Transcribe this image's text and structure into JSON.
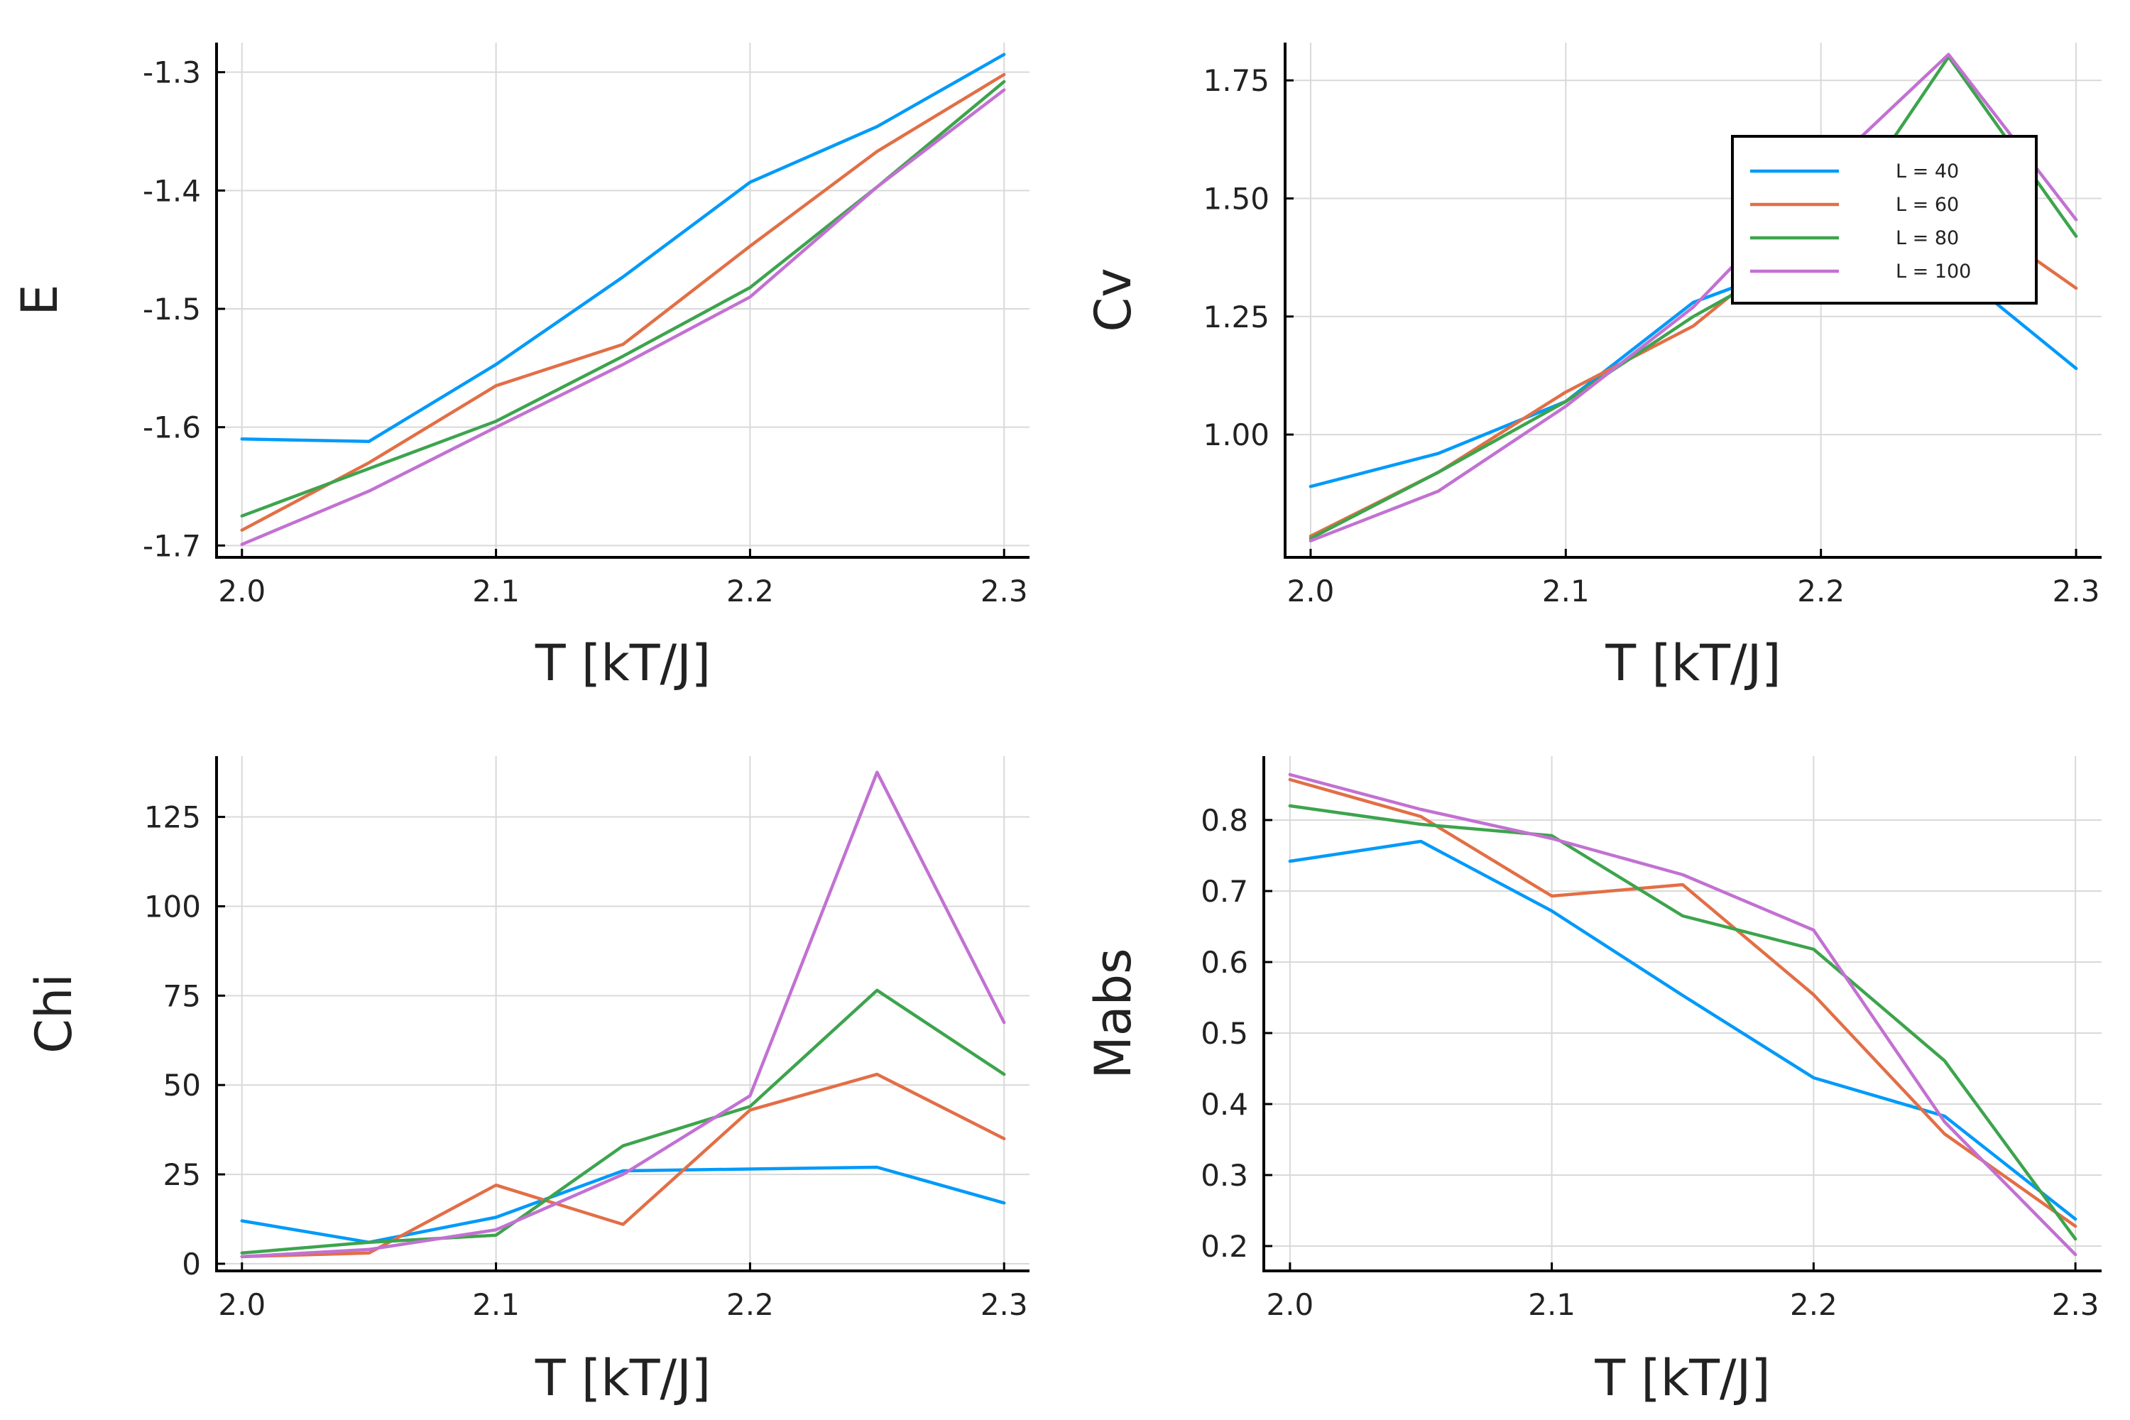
{
  "colors": {
    "L40": "#009af9",
    "L60": "#e26f46",
    "L80": "#3da44d",
    "L100": "#c271d2"
  },
  "legend": {
    "entries": [
      "L = 40",
      "L = 60",
      "L = 80",
      "L = 100"
    ]
  },
  "chart_data": [
    {
      "type": "line",
      "title": "",
      "xlabel": "T [kT/J]",
      "ylabel": "E",
      "xlim": [
        1.99,
        2.31
      ],
      "ylim": [
        -1.71,
        -1.275
      ],
      "xticks": [
        2.0,
        2.1,
        2.2,
        2.3
      ],
      "xtick_labels": [
        "2.0",
        "2.1",
        "2.2",
        "2.3"
      ],
      "yticks": [
        -1.7,
        -1.6,
        -1.5,
        -1.4,
        -1.3
      ],
      "ytick_labels": [
        "-1.7",
        "-1.6",
        "-1.5",
        "-1.4",
        "-1.3"
      ],
      "grid": true,
      "legend": false,
      "x": [
        2.0,
        2.05,
        2.1,
        2.15,
        2.2,
        2.25,
        2.3
      ],
      "series": [
        {
          "name": "L = 40",
          "values": [
            -1.61,
            -1.612,
            -1.547,
            -1.473,
            -1.393,
            -1.346,
            -1.285
          ]
        },
        {
          "name": "L = 60",
          "values": [
            -1.687,
            -1.63,
            -1.565,
            -1.53,
            -1.447,
            -1.367,
            -1.302
          ]
        },
        {
          "name": "L = 80",
          "values": [
            -1.675,
            -1.635,
            -1.595,
            -1.54,
            -1.482,
            -1.397,
            -1.308
          ]
        },
        {
          "name": "L = 100",
          "values": [
            -1.699,
            -1.654,
            -1.6,
            -1.547,
            -1.49,
            -1.397,
            -1.315
          ]
        }
      ]
    },
    {
      "type": "line",
      "title": "",
      "xlabel": "T [kT/J]",
      "ylabel": "Cv",
      "xlim": [
        1.99,
        2.31
      ],
      "ylim": [
        0.74,
        1.83
      ],
      "xticks": [
        2.0,
        2.1,
        2.2,
        2.3
      ],
      "xtick_labels": [
        "2.0",
        "2.1",
        "2.2",
        "2.3"
      ],
      "yticks": [
        1.0,
        1.25,
        1.5,
        1.75
      ],
      "ytick_labels": [
        "1.00",
        "1.25",
        "1.50",
        "1.75"
      ],
      "grid": true,
      "legend": true,
      "legend_position": "top-right",
      "x": [
        2.0,
        2.05,
        2.1,
        2.15,
        2.2,
        2.25,
        2.3
      ],
      "series": [
        {
          "name": "L = 40",
          "values": [
            0.89,
            0.96,
            1.07,
            1.28,
            1.38,
            1.36,
            1.14
          ]
        },
        {
          "name": "L = 60",
          "values": [
            0.785,
            0.92,
            1.09,
            1.23,
            1.45,
            1.5,
            1.31
          ]
        },
        {
          "name": "L = 80",
          "values": [
            0.78,
            0.92,
            1.07,
            1.25,
            1.4,
            1.8,
            1.42
          ]
        },
        {
          "name": "L = 100",
          "values": [
            0.775,
            0.88,
            1.06,
            1.27,
            1.55,
            1.805,
            1.455
          ]
        }
      ]
    },
    {
      "type": "line",
      "title": "",
      "xlabel": "T [kT/J]",
      "ylabel": "Chi",
      "xlim": [
        1.99,
        2.31
      ],
      "ylim": [
        -2,
        142
      ],
      "xticks": [
        2.0,
        2.1,
        2.2,
        2.3
      ],
      "xtick_labels": [
        "2.0",
        "2.1",
        "2.2",
        "2.3"
      ],
      "yticks": [
        0,
        25,
        50,
        75,
        100,
        125
      ],
      "ytick_labels": [
        "0",
        "25",
        "50",
        "75",
        "100",
        "125"
      ],
      "grid": true,
      "legend": false,
      "x": [
        2.0,
        2.05,
        2.1,
        2.15,
        2.2,
        2.25,
        2.3
      ],
      "series": [
        {
          "name": "L = 40",
          "values": [
            12,
            6,
            13,
            26,
            26.5,
            27,
            17
          ]
        },
        {
          "name": "L = 60",
          "values": [
            2,
            3,
            22,
            11,
            43,
            53,
            35
          ]
        },
        {
          "name": "L = 80",
          "values": [
            3,
            6,
            8,
            33,
            44,
            76.5,
            53
          ]
        },
        {
          "name": "L = 100",
          "values": [
            2,
            4,
            9.5,
            25,
            47,
            137.5,
            67.5
          ]
        }
      ]
    },
    {
      "type": "line",
      "title": "",
      "xlabel": "T [kT/J]",
      "ylabel": "Mabs",
      "xlim": [
        1.99,
        2.31
      ],
      "ylim": [
        0.165,
        0.89
      ],
      "xticks": [
        2.0,
        2.1,
        2.2,
        2.3
      ],
      "xtick_labels": [
        "2.0",
        "2.1",
        "2.2",
        "2.3"
      ],
      "yticks": [
        0.2,
        0.3,
        0.4,
        0.5,
        0.6,
        0.7,
        0.8
      ],
      "ytick_labels": [
        "0.2",
        "0.3",
        "0.4",
        "0.5",
        "0.6",
        "0.7",
        "0.8"
      ],
      "grid": true,
      "legend": false,
      "x": [
        2.0,
        2.05,
        2.1,
        2.15,
        2.2,
        2.25,
        2.3
      ],
      "series": [
        {
          "name": "L = 40",
          "values": [
            0.742,
            0.77,
            0.672,
            0.553,
            0.437,
            0.383,
            0.238
          ]
        },
        {
          "name": "L = 60",
          "values": [
            0.857,
            0.805,
            0.693,
            0.709,
            0.554,
            0.358,
            0.228
          ]
        },
        {
          "name": "L = 80",
          "values": [
            0.82,
            0.794,
            0.778,
            0.665,
            0.618,
            0.461,
            0.21
          ]
        },
        {
          "name": "L = 100",
          "values": [
            0.864,
            0.815,
            0.774,
            0.723,
            0.645,
            0.375,
            0.188
          ]
        }
      ]
    }
  ]
}
